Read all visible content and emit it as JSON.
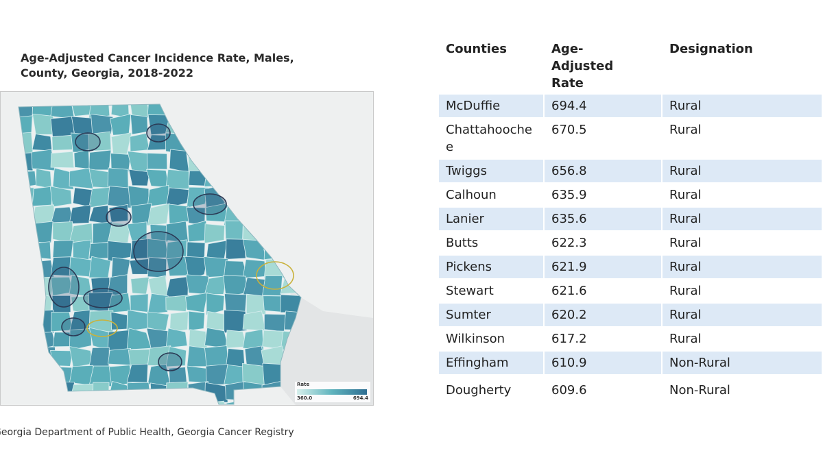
{
  "map": {
    "title_line1": "Age-Adjusted Cancer Incidence Rate, Males,",
    "title_line2": "County, Georgia, 2018-2022",
    "legend": {
      "title": "Rate",
      "min": "360.0",
      "max": "694.4"
    },
    "colors": {
      "low": "#d6f0ec",
      "mid": "#5fb3bd",
      "high": "#2f6f93",
      "circle": "#2b3a55",
      "circle_alt": "#c9b23c"
    }
  },
  "source": "Georgia Department of Public Health, Georgia Cancer Registry",
  "table": {
    "headers": {
      "county": "Counties",
      "rate_line1": "Age-",
      "rate_line2": "Adjusted",
      "rate_line3": "Rate",
      "designation": "Designation"
    },
    "rows": [
      {
        "county": "McDuffie",
        "rate": "694.4",
        "designation": "Rural"
      },
      {
        "county": "Chattahoochee",
        "rate": "670.5",
        "designation": "Rural"
      },
      {
        "county": "Twiggs",
        "rate": "656.8",
        "designation": "Rural"
      },
      {
        "county": "Calhoun",
        "rate": "635.9",
        "designation": "Rural"
      },
      {
        "county": "Lanier",
        "rate": "635.6",
        "designation": "Rural"
      },
      {
        "county": "Butts",
        "rate": "622.3",
        "designation": "Rural"
      },
      {
        "county": "Pickens",
        "rate": "621.9",
        "designation": "Rural"
      },
      {
        "county": "Stewart",
        "rate": "621.6",
        "designation": "Rural"
      },
      {
        "county": "Sumter",
        "rate": "620.2",
        "designation": "Rural"
      },
      {
        "county": "Wilkinson",
        "rate": "617.2",
        "designation": "Rural"
      },
      {
        "county": "Effingham",
        "rate": "610.9",
        "designation": "Non-Rural"
      },
      {
        "county": "Dougherty",
        "rate": "609.6",
        "designation": "Non-Rural"
      }
    ]
  }
}
